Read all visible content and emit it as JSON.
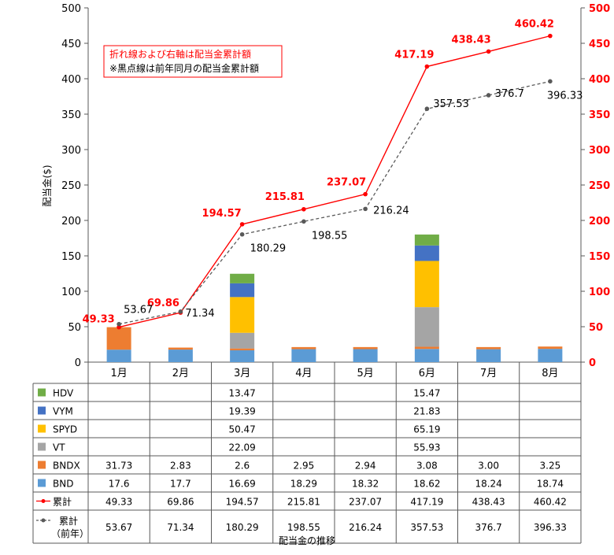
{
  "chart_data": {
    "type": "bar",
    "stacked": true,
    "categories": [
      "1月",
      "2月",
      "3月",
      "4月",
      "5月",
      "6月",
      "7月",
      "8月"
    ],
    "ylabel": "配当金($)",
    "xlabel": "配当金の推移",
    "ylim": [
      0,
      500
    ],
    "y_ticks": [
      "0",
      "50",
      "100",
      "150",
      "200",
      "250",
      "300",
      "350",
      "400",
      "450",
      "500"
    ],
    "y2lim": [
      0,
      500
    ],
    "grid": false,
    "series": [
      {
        "name": "HDV",
        "kind": "bar",
        "color": "#70ad47",
        "values": [
          null,
          null,
          13.47,
          null,
          null,
          15.47,
          null,
          null
        ],
        "labels": [
          "",
          "",
          "13.47",
          "",
          "",
          "15.47",
          "",
          ""
        ]
      },
      {
        "name": "VYM",
        "kind": "bar",
        "color": "#4472c4",
        "values": [
          null,
          null,
          19.39,
          null,
          null,
          21.83,
          null,
          null
        ],
        "labels": [
          "",
          "",
          "19.39",
          "",
          "",
          "21.83",
          "",
          ""
        ]
      },
      {
        "name": "SPYD",
        "kind": "bar",
        "color": "#ffc000",
        "values": [
          null,
          null,
          50.47,
          null,
          null,
          65.19,
          null,
          null
        ],
        "labels": [
          "",
          "",
          "50.47",
          "",
          "",
          "65.19",
          "",
          ""
        ]
      },
      {
        "name": "VT",
        "kind": "bar",
        "color": "#a5a5a5",
        "values": [
          null,
          null,
          22.09,
          null,
          null,
          55.93,
          null,
          null
        ],
        "labels": [
          "",
          "",
          "22.09",
          "",
          "",
          "55.93",
          "",
          ""
        ]
      },
      {
        "name": "BNDX",
        "kind": "bar",
        "color": "#ed7d31",
        "values": [
          31.73,
          2.83,
          2.6,
          2.95,
          2.94,
          3.08,
          3.0,
          3.25
        ],
        "labels": [
          "31.73",
          "2.83",
          "2.6",
          "2.95",
          "2.94",
          "3.08",
          "3.00",
          "3.25"
        ]
      },
      {
        "name": "BND",
        "kind": "bar",
        "color": "#5b9bd5",
        "values": [
          17.6,
          17.7,
          16.69,
          18.29,
          18.32,
          18.62,
          18.24,
          18.74
        ],
        "labels": [
          "17.6",
          "17.7",
          "16.69",
          "18.29",
          "18.32",
          "18.62",
          "18.24",
          "18.74"
        ]
      },
      {
        "name": "累計",
        "kind": "line",
        "color": "#ff0000",
        "values": [
          49.33,
          69.86,
          194.57,
          215.81,
          237.07,
          417.19,
          438.43,
          460.42
        ],
        "labels": [
          "49.33",
          "69.86",
          "194.57",
          "215.81",
          "237.07",
          "417.19",
          "438.43",
          "460.42"
        ]
      },
      {
        "name": "累計\n（前年）",
        "kind": "dashed-line",
        "color": "#595959",
        "values": [
          53.67,
          71.34,
          180.29,
          198.55,
          216.24,
          357.53,
          376.7,
          396.33
        ],
        "labels": [
          "53.67",
          "71.34",
          "180.29",
          "198.55",
          "216.24",
          "357.53",
          "376.7",
          "396.33"
        ]
      }
    ],
    "annotation": {
      "line1": "折れ線および右軸は配当金累計額",
      "line2": "※黒点線は前年同月の配当金累計額"
    }
  }
}
